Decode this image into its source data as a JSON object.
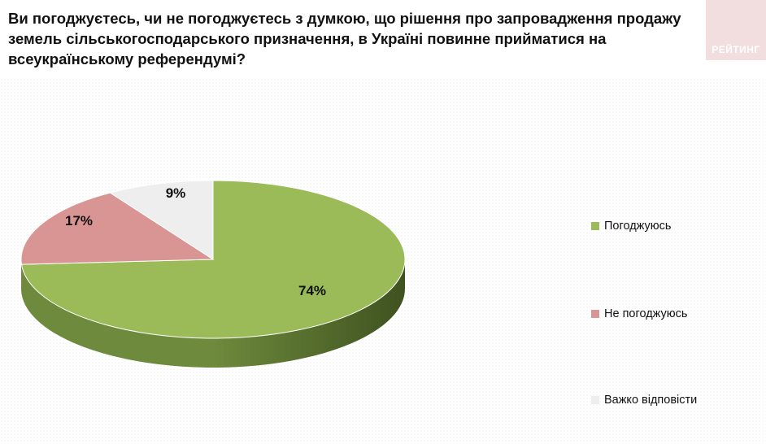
{
  "title": "Ви погоджуєтесь, чи не погоджуєтесь з думкою, що рішення про запровадження продажу земель сільськогосподарського призначення, в Україні повинне прийматися на всеукраїнському референдумі?",
  "logo_text": "РЕЙТИНГ",
  "colors": {
    "logo_bg": "#f2dede"
  },
  "chart_data": {
    "type": "pie",
    "title": "Ви погоджуєтесь, чи не погоджуєтесь з думкою, що рішення про запровадження продажу земель сільськогосподарського призначення, в Україні повинне прийматися на всеукраїнському референдумі?",
    "three_d": true,
    "legend_position": "right",
    "slices": [
      {
        "label": "Погоджуюсь",
        "value": 74,
        "display": "74%",
        "color": "#9bbb59",
        "side_color": "#6e8a3c"
      },
      {
        "label": "Не погоджуюсь",
        "value": 17,
        "display": "17%",
        "color": "#d99594",
        "side_color": "#a86a69"
      },
      {
        "label": "Важко відповісти",
        "value": 9,
        "display": "9%",
        "color": "#eeeeee",
        "side_color": "#bdbdbd"
      }
    ]
  }
}
